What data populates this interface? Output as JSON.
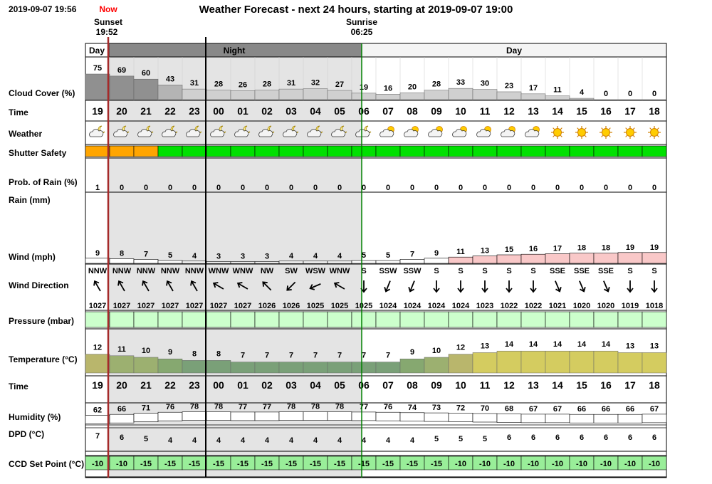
{
  "header": {
    "timestamp": "2019-09-07 19:56",
    "now_label": "Now",
    "title": "Weather Forecast - next 24 hours, starting at 2019-09-07 19:00",
    "sunset_label": "Sunset",
    "sunset_time": "19:52",
    "sunrise_label": "Sunrise",
    "sunrise_time": "06:25"
  },
  "period_bar": {
    "day_left": "Day",
    "night": "Night",
    "day_right": "Day"
  },
  "row_labels": {
    "cloud": "Cloud Cover (%)",
    "time": "Time",
    "weather": "Weather",
    "shutter": "Shutter Safety",
    "rain_prob": "Prob. of Rain (%)",
    "rain": "Rain (mm)",
    "wind": "Wind (mph)",
    "wind_dir": "Wind Direction",
    "pressure": "Pressure (mbar)",
    "temp": "Temperature (°C)",
    "time2": "Time",
    "humidity": "Humidity (%)",
    "dpd": "DPD (°C)",
    "ccd": "CCD Set Point (°C)"
  },
  "hours": [
    "19",
    "20",
    "21",
    "22",
    "23",
    "00",
    "01",
    "02",
    "03",
    "04",
    "05",
    "06",
    "07",
    "08",
    "09",
    "10",
    "11",
    "12",
    "13",
    "14",
    "15",
    "16",
    "17",
    "18"
  ],
  "colors": {
    "night_bg": "#e4e4e4",
    "now_line": "#a52a2a",
    "sun_line": "#008000",
    "shutter_orange": "#ffa500",
    "shutter_green": "#00e000",
    "wind_pink": "#f9c8c8",
    "pressure_green": "#ccffcc",
    "ccd_green": "#99ee99",
    "sun_fill": "#ffcc00"
  },
  "chart_data": {
    "type": "table",
    "hours": [
      "19",
      "20",
      "21",
      "22",
      "23",
      "00",
      "01",
      "02",
      "03",
      "04",
      "05",
      "06",
      "07",
      "08",
      "09",
      "10",
      "11",
      "12",
      "13",
      "14",
      "15",
      "16",
      "17",
      "18"
    ],
    "cloud_cover": [
      75,
      69,
      60,
      43,
      31,
      28,
      26,
      28,
      31,
      32,
      27,
      19,
      16,
      20,
      28,
      33,
      30,
      23,
      17,
      11,
      4,
      0,
      0,
      0
    ],
    "weather": [
      "partly-cloudy-night",
      "partly-cloudy-night",
      "partly-cloudy-night",
      "partly-cloudy-night",
      "partly-cloudy-night",
      "partly-cloudy-night",
      "partly-cloudy-night",
      "partly-cloudy-night",
      "partly-cloudy-night",
      "partly-cloudy-night",
      "partly-cloudy-night",
      "partly-cloudy-night",
      "partly-cloudy-day",
      "partly-cloudy-day",
      "partly-cloudy-day",
      "partly-cloudy-day",
      "partly-cloudy-day",
      "partly-cloudy-day",
      "partly-cloudy-day",
      "sunny",
      "sunny",
      "sunny",
      "sunny",
      "sunny"
    ],
    "shutter_safety": [
      "orange",
      "orange",
      "orange",
      "green",
      "green",
      "green",
      "green",
      "green",
      "green",
      "green",
      "green",
      "green",
      "green",
      "green",
      "green",
      "green",
      "green",
      "green",
      "green",
      "green",
      "green",
      "green",
      "green",
      "green"
    ],
    "rain_probability": [
      1,
      0,
      0,
      0,
      0,
      0,
      0,
      0,
      0,
      0,
      0,
      0,
      0,
      0,
      0,
      0,
      0,
      0,
      0,
      0,
      0,
      0,
      0,
      0
    ],
    "wind_speed": [
      9,
      8,
      7,
      5,
      4,
      3,
      3,
      3,
      4,
      4,
      4,
      5,
      5,
      7,
      9,
      11,
      13,
      15,
      16,
      17,
      18,
      18,
      19,
      19
    ],
    "wind_direction": [
      "NNW",
      "NNW",
      "NNW",
      "NNW",
      "NNW",
      "WNW",
      "WNW",
      "NW",
      "SW",
      "WSW",
      "WNW",
      "S",
      "SSW",
      "SSW",
      "S",
      "S",
      "S",
      "S",
      "S",
      "SSE",
      "SSE",
      "SSE",
      "S",
      "S"
    ],
    "wind_arrow_angle_deg": [
      330,
      330,
      330,
      330,
      330,
      300,
      300,
      315,
      225,
      247,
      300,
      180,
      202,
      202,
      180,
      180,
      180,
      180,
      180,
      157,
      157,
      157,
      180,
      180
    ],
    "pressure": [
      1027,
      1027,
      1027,
      1027,
      1027,
      1027,
      1027,
      1026,
      1026,
      1025,
      1025,
      1025,
      1024,
      1024,
      1024,
      1024,
      1023,
      1022,
      1022,
      1021,
      1020,
      1020,
      1019,
      1018
    ],
    "temperature": [
      12,
      11,
      10,
      9,
      8,
      8,
      7,
      7,
      7,
      7,
      7,
      7,
      7,
      9,
      10,
      12,
      13,
      14,
      14,
      14,
      14,
      14,
      13,
      13
    ],
    "humidity": [
      62,
      66,
      71,
      76,
      78,
      78,
      77,
      77,
      78,
      78,
      78,
      77,
      76,
      74,
      73,
      72,
      70,
      68,
      67,
      67,
      66,
      66,
      66,
      67
    ],
    "dpd": [
      7,
      6,
      5,
      4,
      4,
      4,
      4,
      4,
      4,
      4,
      4,
      4,
      4,
      4,
      5,
      5,
      5,
      6,
      6,
      6,
      6,
      6,
      6,
      6
    ],
    "ccd_set_point": [
      -10,
      -10,
      -15,
      -15,
      -15,
      -15,
      -15,
      -15,
      -15,
      -15,
      -15,
      -15,
      -15,
      -15,
      -15,
      -10,
      -10,
      -10,
      -10,
      -10,
      -10,
      -10,
      -10,
      -10
    ]
  }
}
